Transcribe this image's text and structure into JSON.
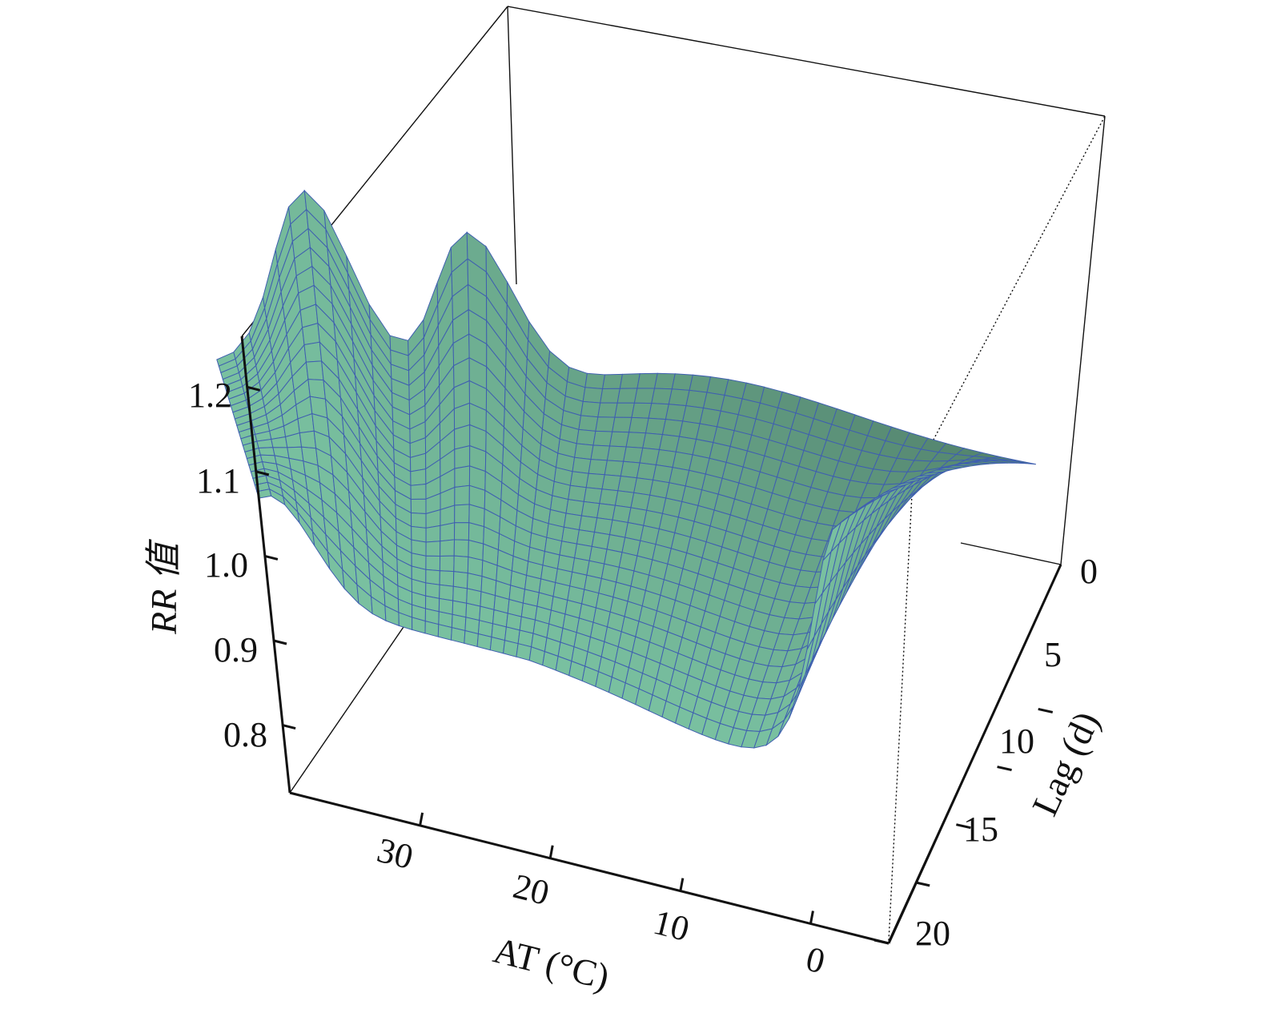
{
  "chart_data": {
    "type": "surface3d",
    "title": "",
    "zlabel": "RR 值",
    "xlabel": "AT (°C)",
    "ylabel": "Lag (d)",
    "zlim": [
      0.72,
      1.26
    ],
    "xlim": [
      -6,
      40
    ],
    "ylim": [
      0,
      21
    ],
    "z_ticks": [
      "0.8",
      "0.9",
      "1.0",
      "1.1",
      "1.2"
    ],
    "x_ticks": [
      "30",
      "20",
      "10",
      "0"
    ],
    "y_ticks": [
      "0",
      "5",
      "10",
      "15",
      "20"
    ],
    "surface_color": "#79c0a0",
    "mesh_color": "#3f5fb0",
    "grid": false,
    "surface_samples": {
      "lag_0": [
        {
          "AT": 39,
          "RR": 1.07
        },
        {
          "AT": 33,
          "RR": 1.0
        },
        {
          "AT": 20,
          "RR": 0.98
        },
        {
          "AT": 10,
          "RR": 0.96
        },
        {
          "AT": 2,
          "RR": 0.95
        },
        {
          "AT": -1,
          "RR": 1.05
        },
        {
          "AT": -6,
          "RR": 1.25
        }
      ],
      "lag_20": [
        {
          "AT": 39,
          "RR": 1.0
        },
        {
          "AT": 33,
          "RR": 1.22
        },
        {
          "AT": 30,
          "RR": 1.05
        },
        {
          "AT": 20,
          "RR": 1.02
        },
        {
          "AT": 10,
          "RR": 1.02
        },
        {
          "AT": 0,
          "RR": 1.03
        },
        {
          "AT": -6,
          "RR": 1.0
        }
      ]
    }
  }
}
